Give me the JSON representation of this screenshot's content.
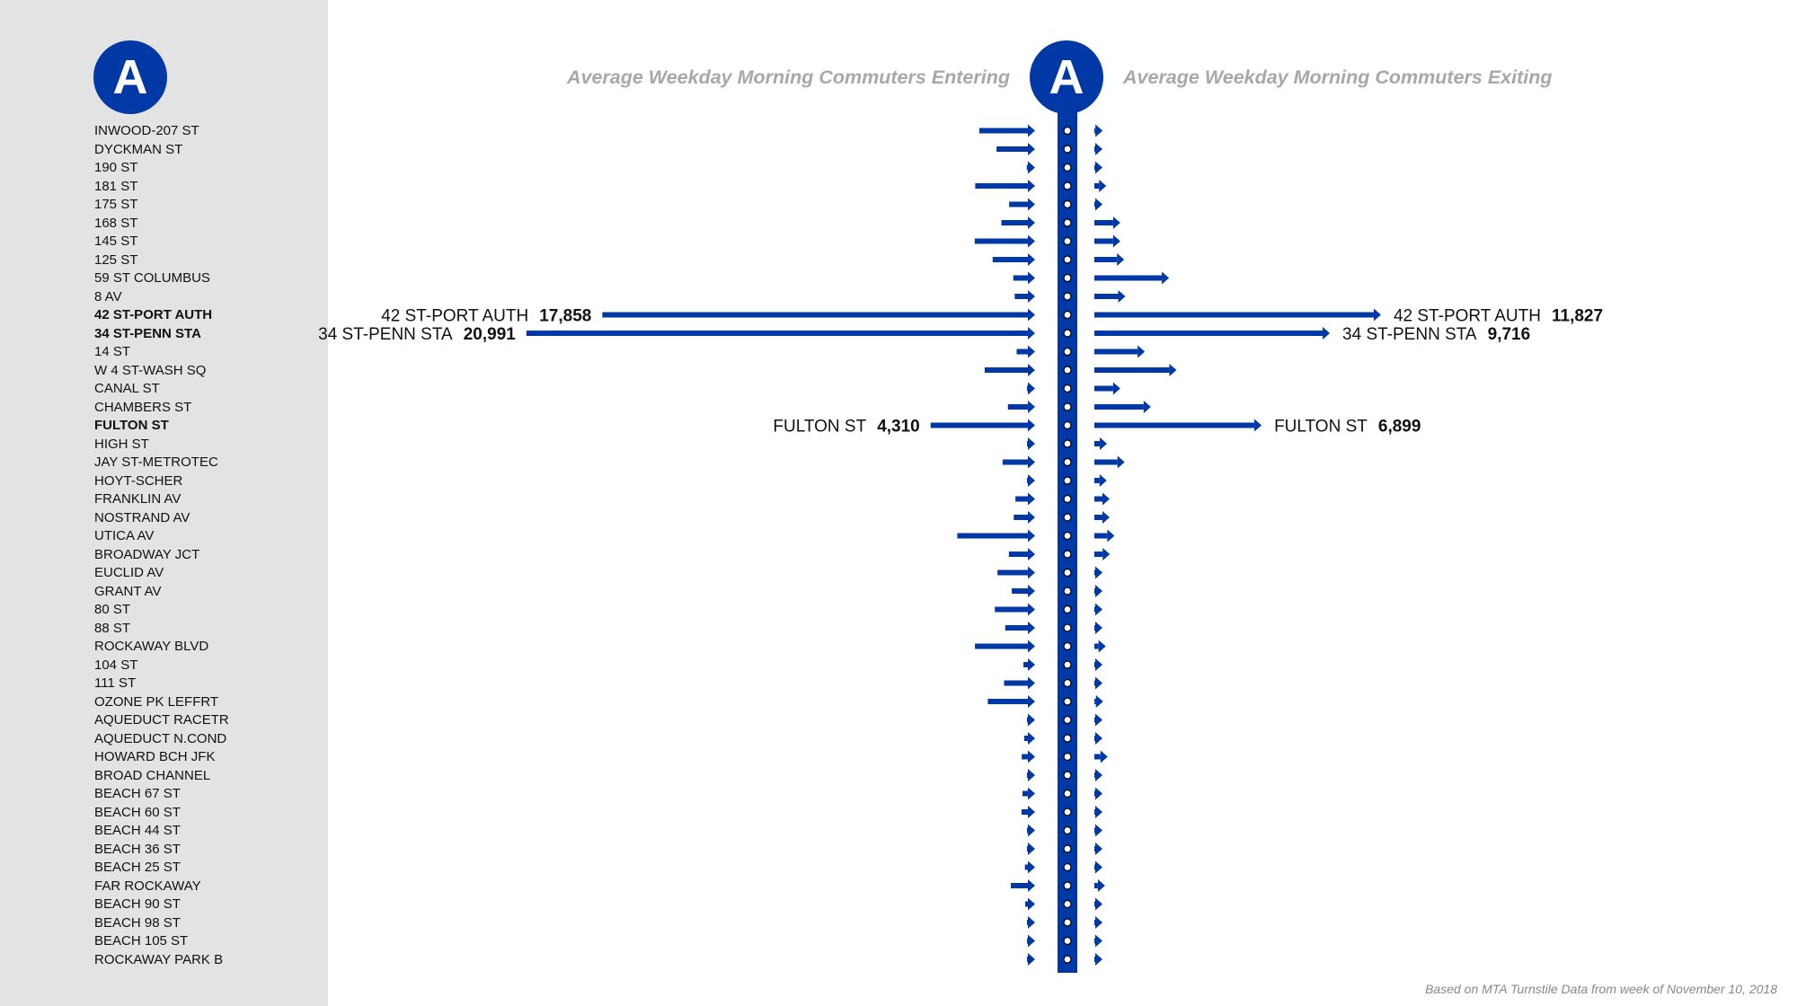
{
  "route": "A",
  "header": {
    "entering_title": "Average Weekday Morning Commuters Entering",
    "exiting_title": "Average Weekday Morning Commuters Exiting"
  },
  "footnote": "Based on MTA Turnstile Data from week of November 10, 2018",
  "colors": {
    "line": "#0039a6",
    "sidebar": "#e3e3e3",
    "title": "#a8a8a8",
    "station_dot": "#ffffff"
  },
  "chart_data": {
    "type": "bar",
    "orientation": "horizontal",
    "layout": "diverging",
    "title": "",
    "categories": [
      "INWOOD-207 ST",
      "DYCKMAN ST",
      "190 ST",
      "181 ST",
      "175 ST",
      "168 ST",
      "145 ST",
      "125 ST",
      "59 ST COLUMBUS",
      "8 AV",
      "42 ST-PORT AUTH",
      "34 ST-PENN STA",
      "14 ST",
      "W 4 ST-WASH SQ",
      "CANAL ST",
      "CHAMBERS ST",
      "FULTON ST",
      "HIGH ST",
      "JAY ST-METROTEC",
      "HOYT-SCHER",
      "FRANKLIN AV",
      "NOSTRAND AV",
      "UTICA AV",
      "BROADWAY JCT",
      "EUCLID AV",
      "GRANT AV",
      "80 ST",
      "88 ST",
      "ROCKAWAY BLVD",
      "104 ST",
      "111 ST",
      "OZONE PK LEFFRT",
      "AQUEDUCT RACETR",
      "AQUEDUCT N.COND",
      "HOWARD BCH JFK",
      "BROAD CHANNEL",
      "BEACH 67 ST",
      "BEACH 60 ST",
      "BEACH 44 ST",
      "BEACH 36 ST",
      "BEACH 25 ST",
      "FAR ROCKAWAY",
      "BEACH 90 ST",
      "BEACH 98 ST",
      "BEACH 105 ST",
      "ROCKAWAY PARK B"
    ],
    "highlighted": [
      "42 ST-PORT AUTH",
      "34 ST-PENN STA",
      "FULTON ST"
    ],
    "series": [
      {
        "name": "Entering",
        "values": [
          2300,
          1590,
          340,
          2470,
          1070,
          1390,
          2490,
          1750,
          900,
          840,
          17858,
          20991,
          760,
          2080,
          270,
          1120,
          4310,
          230,
          1340,
          250,
          810,
          880,
          3210,
          1080,
          1550,
          960,
          1660,
          1230,
          2480,
          480,
          1280,
          1950,
          160,
          450,
          550,
          240,
          520,
          560,
          240,
          240,
          420,
          1000,
          410,
          240,
          240,
          240
        ]
      },
      {
        "name": "Exiting",
        "values": [
          340,
          190,
          170,
          490,
          260,
          1070,
          1070,
          1230,
          3080,
          1280,
          11827,
          9716,
          2080,
          3390,
          1070,
          2330,
          6899,
          520,
          1250,
          510,
          630,
          630,
          830,
          640,
          320,
          320,
          200,
          200,
          470,
          170,
          200,
          360,
          170,
          180,
          550,
          170,
          170,
          170,
          170,
          170,
          170,
          440,
          170,
          170,
          170,
          170
        ]
      }
    ],
    "labels": [
      {
        "station": "42 ST-PORT AUTH",
        "entering": "17,858",
        "exiting": "11,827"
      },
      {
        "station": "34 ST-PENN STA",
        "entering": "20,991",
        "exiting": "9,716"
      },
      {
        "station": "FULTON ST",
        "entering": "4,310",
        "exiting": "6,899"
      }
    ]
  }
}
